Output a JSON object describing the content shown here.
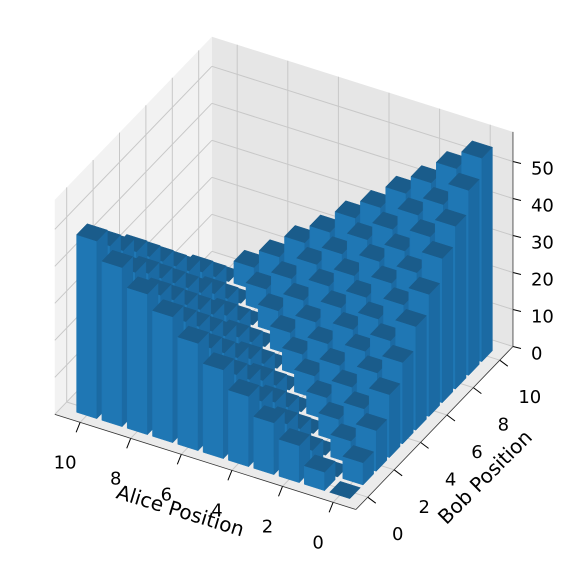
{
  "chart_data": {
    "type": "bar3d",
    "xlabel": "Alice Position",
    "ylabel": "Bob Position",
    "x": [
      0,
      1,
      2,
      3,
      4,
      5,
      6,
      7,
      8,
      9,
      10
    ],
    "y": [
      0,
      1,
      2,
      3,
      4,
      5,
      6,
      7,
      8,
      9,
      10
    ],
    "values": [
      [
        0,
        6,
        11,
        17,
        22,
        28,
        33,
        39,
        44,
        50,
        55
      ],
      [
        5,
        0,
        6,
        11,
        17,
        22,
        28,
        33,
        39,
        44,
        50
      ],
      [
        10,
        5,
        0,
        6,
        11,
        17,
        22,
        28,
        33,
        39,
        44
      ],
      [
        14,
        10,
        5,
        0,
        6,
        11,
        17,
        22,
        28,
        33,
        39
      ],
      [
        19,
        14,
        10,
        5,
        0,
        6,
        11,
        17,
        22,
        28,
        33
      ],
      [
        24,
        19,
        14,
        10,
        5,
        0,
        6,
        11,
        17,
        22,
        28
      ],
      [
        29,
        24,
        19,
        14,
        10,
        5,
        0,
        6,
        11,
        17,
        22
      ],
      [
        34,
        29,
        24,
        19,
        14,
        10,
        5,
        0,
        6,
        11,
        17
      ],
      [
        38,
        34,
        29,
        24,
        19,
        14,
        10,
        5,
        0,
        6,
        11
      ],
      [
        43,
        38,
        34,
        29,
        24,
        19,
        14,
        10,
        5,
        0,
        6
      ],
      [
        48,
        43,
        38,
        34,
        29,
        24,
        19,
        14,
        10,
        5,
        0
      ]
    ],
    "color": "#1f77b4",
    "xlim": [
      -0.9,
      11
    ],
    "ylim": [
      -0.9,
      11
    ],
    "zlim": [
      0,
      58
    ],
    "xticks": [
      0,
      2,
      4,
      6,
      8,
      10
    ],
    "yticks": [
      0,
      2,
      4,
      6,
      8,
      10
    ],
    "zticks": [
      0,
      10,
      20,
      30,
      40,
      50
    ],
    "grid": true
  }
}
